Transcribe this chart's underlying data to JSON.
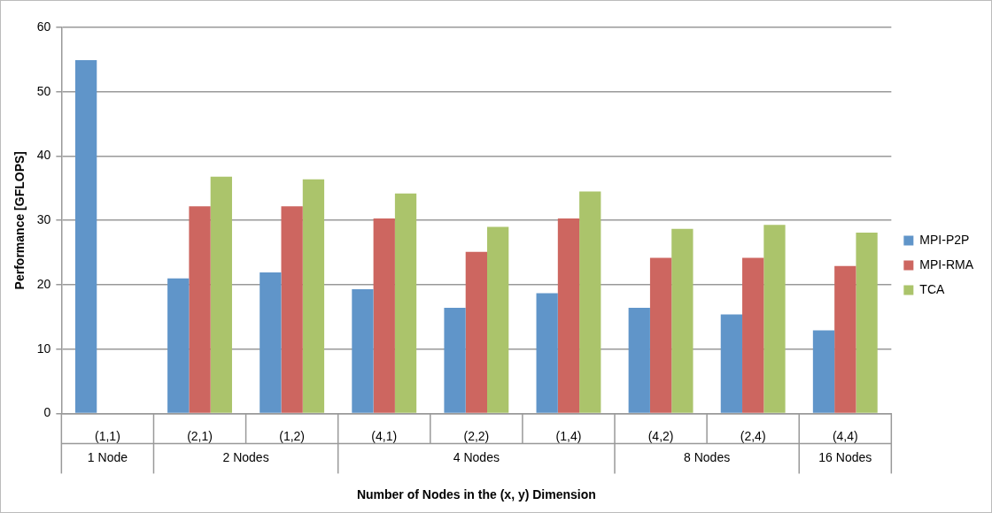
{
  "chart_data": {
    "type": "bar",
    "xlabel": "Number of Nodes in the (x, y) Dimension",
    "ylabel": "Performance [GFLOPS]",
    "categories": [
      "(1,1)",
      "(2,1)",
      "(1,2)",
      "(4,1)",
      "(2,2)",
      "(1,4)",
      "(4,2)",
      "(2,4)",
      "(4,4)"
    ],
    "series": [
      {
        "name": "MPI-P2P",
        "color": "#6095c9",
        "values": [
          54.9,
          21.0,
          21.9,
          19.3,
          16.4,
          18.7,
          16.4,
          15.4,
          12.9
        ]
      },
      {
        "name": "MPI-RMA",
        "color": "#cd6660",
        "values": [
          null,
          32.2,
          32.2,
          30.3,
          25.1,
          30.3,
          24.2,
          24.2,
          22.9
        ]
      },
      {
        "name": "TCA",
        "color": "#abc46b",
        "values": [
          null,
          36.8,
          36.4,
          34.2,
          29.0,
          34.5,
          28.7,
          29.3,
          28.1
        ]
      }
    ],
    "annotations": [
      "1 Node",
      "2 Nodes",
      "4 Nodes",
      "8 Nodes",
      "16 Nodes"
    ],
    "ylim": [
      0,
      60
    ],
    "yticks": [
      0,
      10,
      20,
      30,
      40,
      50,
      60
    ],
    "grid": "y",
    "legend": "right"
  }
}
